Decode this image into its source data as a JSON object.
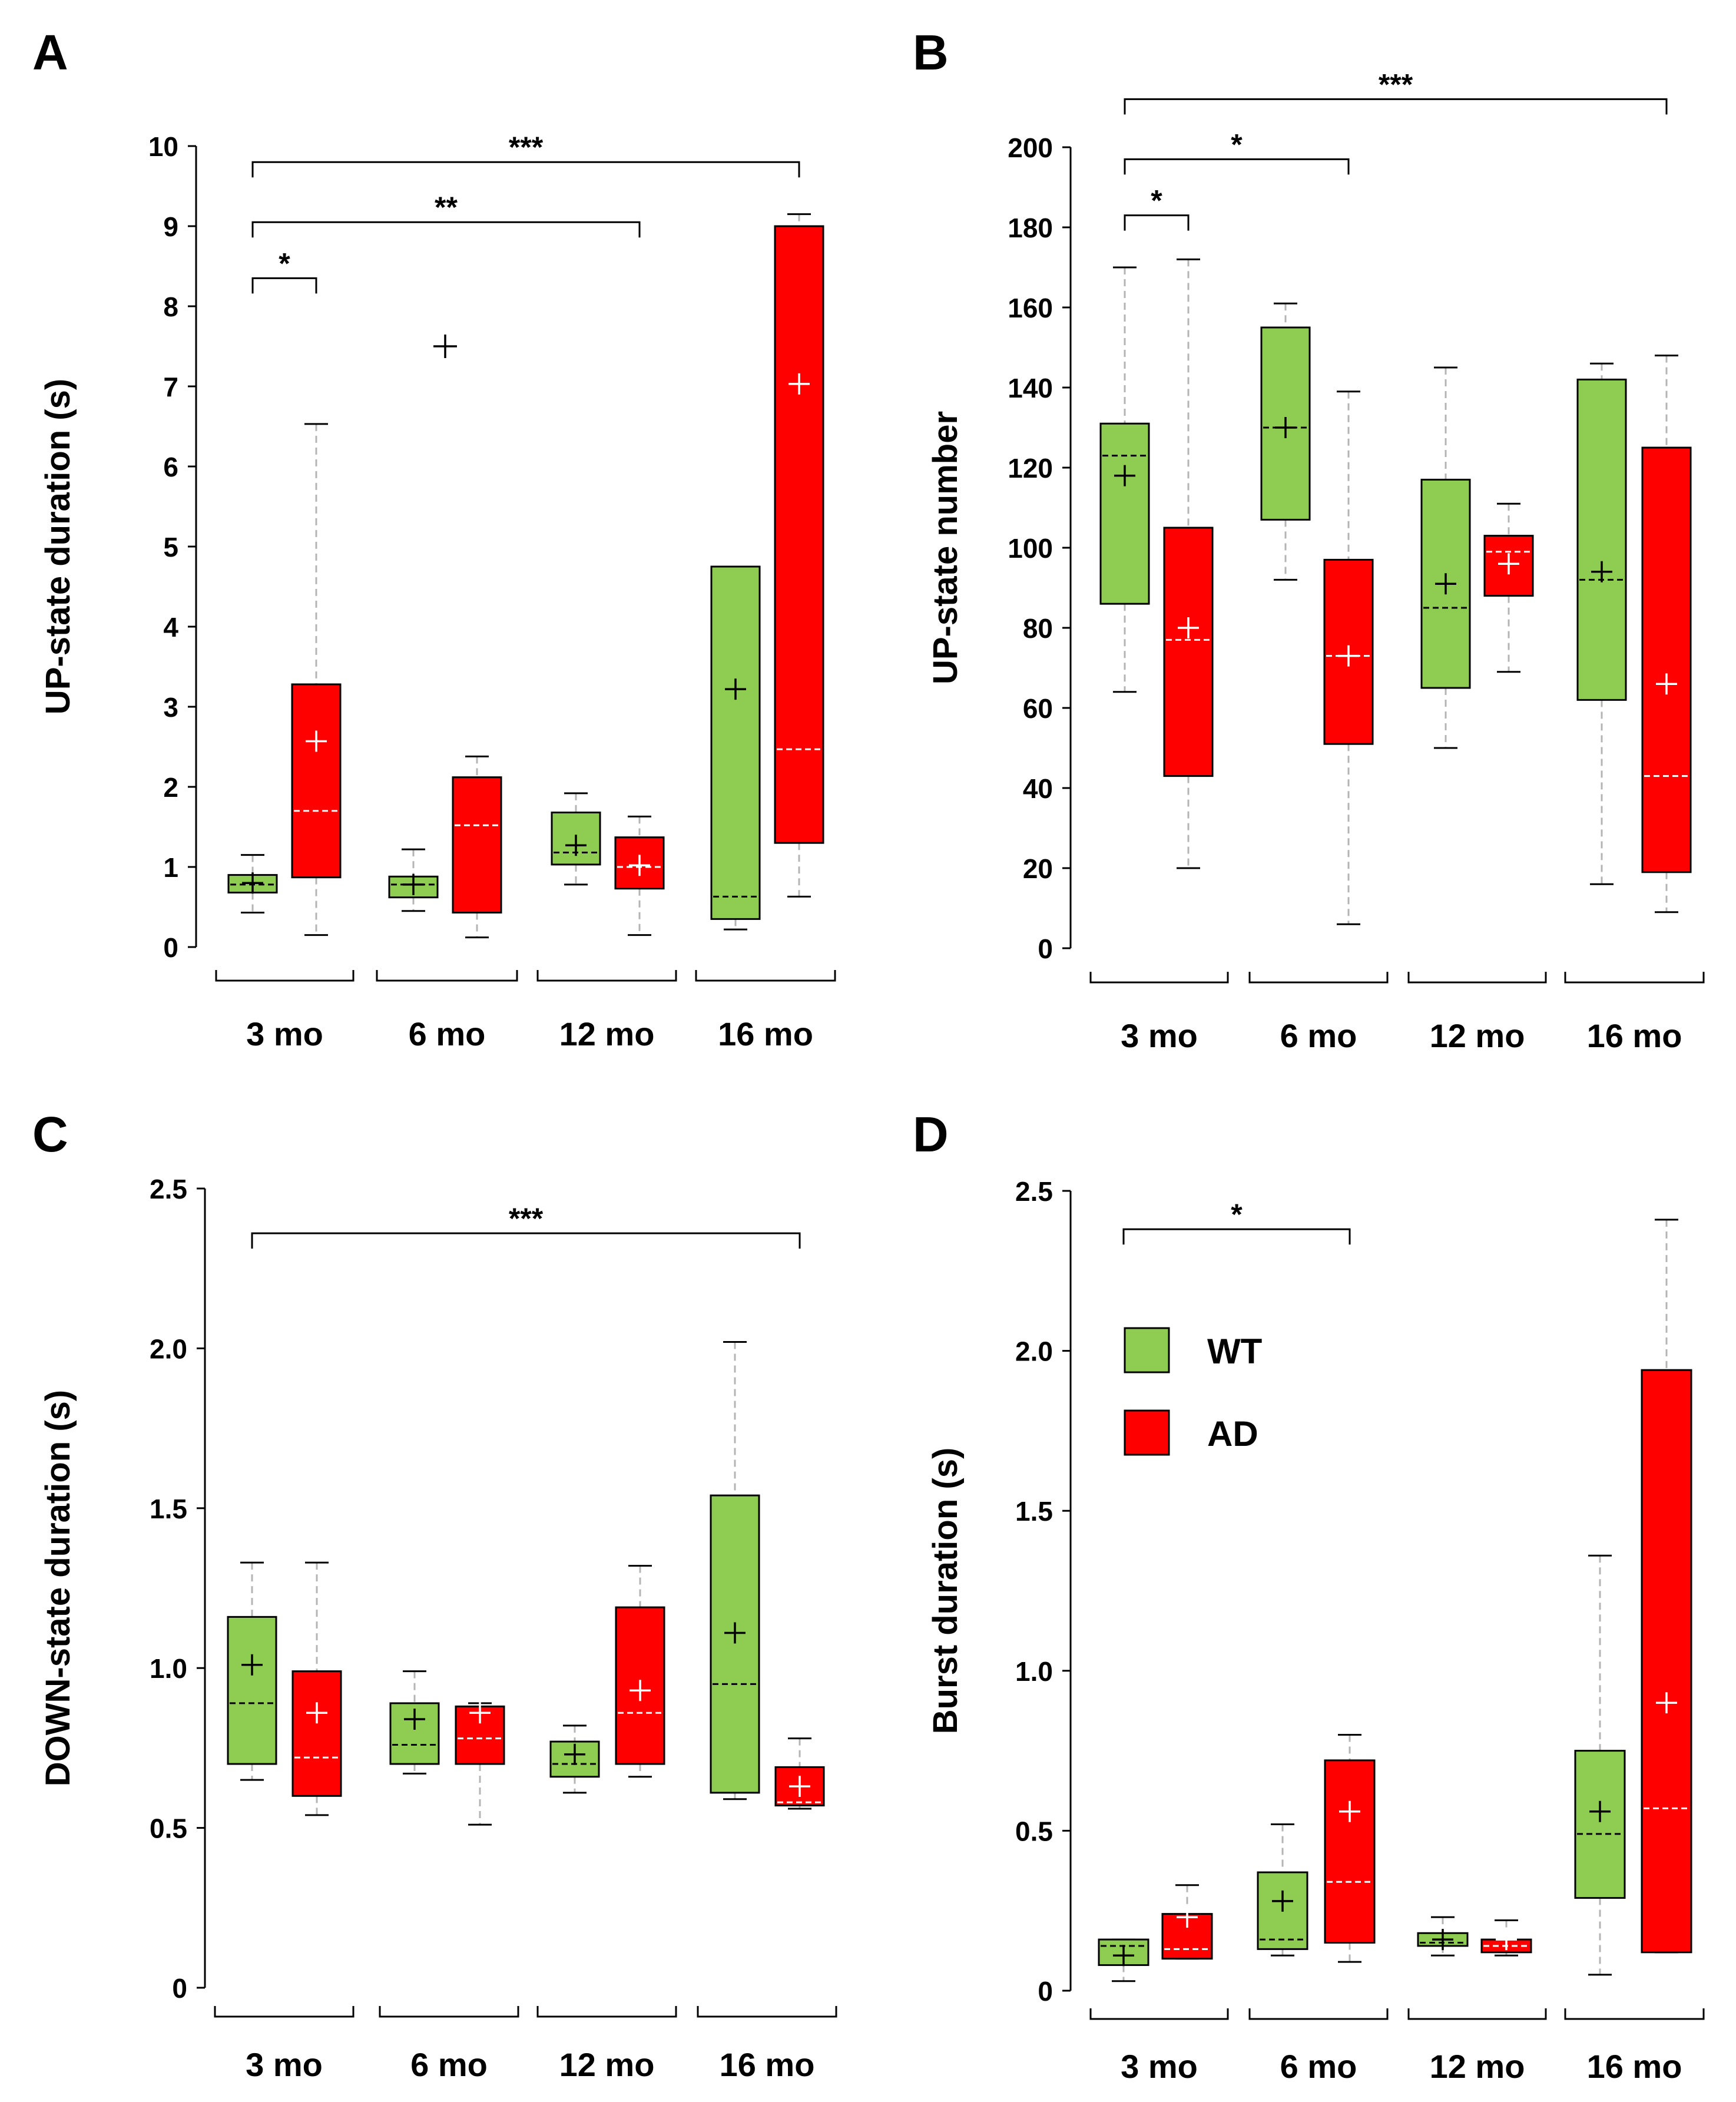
{
  "colors": {
    "WT": "#8fcc52",
    "AD": "#ff0000",
    "whisker": "#b4b4b4"
  },
  "legend": {
    "items": [
      {
        "label": "WT",
        "group": "WT"
      },
      {
        "label": "AD",
        "group": "AD"
      }
    ]
  },
  "chart_data": [
    {
      "panel": "A",
      "type": "box",
      "ylabel": "UP-state duration (s)",
      "ylim": [
        0,
        10
      ],
      "ticks": [
        "0",
        "1",
        "2",
        "3",
        "4",
        "5",
        "6",
        "7",
        "8",
        "9",
        "10"
      ],
      "categories": [
        "3 mo",
        "6 mo",
        "12 mo",
        "16 mo"
      ],
      "boxes": [
        {
          "category": "3 mo",
          "group": "WT",
          "low": 0.43,
          "q1": 0.68,
          "median": 0.78,
          "q3": 0.9,
          "high": 1.15,
          "mean": 0.8
        },
        {
          "category": "3 mo",
          "group": "AD",
          "low": 0.15,
          "q1": 0.87,
          "median": 1.7,
          "q3": 3.28,
          "high": 6.53,
          "mean": 2.57
        },
        {
          "category": "6 mo",
          "group": "WT",
          "low": 0.45,
          "q1": 0.62,
          "median": 0.78,
          "q3": 0.88,
          "high": 1.22,
          "mean": 0.78
        },
        {
          "category": "6 mo",
          "group": "AD",
          "low": 0.12,
          "q1": 0.43,
          "median": 1.52,
          "q3": 2.12,
          "high": 2.38,
          "mean": null
        },
        {
          "category": "12 mo",
          "group": "WT",
          "low": 0.78,
          "q1": 1.03,
          "median": 1.18,
          "q3": 1.68,
          "high": 1.92,
          "mean": 1.27
        },
        {
          "category": "12 mo",
          "group": "AD",
          "low": 0.15,
          "q1": 0.73,
          "median": 1.0,
          "q3": 1.37,
          "high": 1.63,
          "mean": 1.02
        },
        {
          "category": "16 mo",
          "group": "WT",
          "low": 0.22,
          "q1": 0.35,
          "median": 0.63,
          "q3": 4.75,
          "high": 4.75,
          "mean": 3.22
        },
        {
          "category": "16 mo",
          "group": "AD",
          "low": 0.63,
          "q1": 1.3,
          "median": 2.47,
          "q3": 9.0,
          "high": 9.15,
          "mean": 7.03
        }
      ],
      "outliers": [
        {
          "category": "6 mo",
          "value": 7.5
        }
      ],
      "significance": [
        {
          "from": "3 mo WT",
          "to": "3 mo AD",
          "y": 8.35,
          "label": "*"
        },
        {
          "from": "3 mo WT",
          "to": "12 mo AD",
          "y": 9.05,
          "label": "**"
        },
        {
          "from": "3 mo WT",
          "to": "16 mo AD",
          "y": 9.8,
          "label": "***"
        }
      ]
    },
    {
      "panel": "B",
      "type": "box",
      "ylabel": "UP-state number",
      "ylim": [
        0,
        200
      ],
      "ticks": [
        "0",
        "20",
        "40",
        "60",
        "80",
        "100",
        "120",
        "140",
        "160",
        "180",
        "200"
      ],
      "categories": [
        "3 mo",
        "6 mo",
        "12 mo",
        "16 mo"
      ],
      "boxes": [
        {
          "category": "3 mo",
          "group": "WT",
          "low": 64,
          "q1": 86,
          "median": 123,
          "q3": 131,
          "high": 170,
          "mean": 118
        },
        {
          "category": "3 mo",
          "group": "AD",
          "low": 20,
          "q1": 43,
          "median": 77,
          "q3": 105,
          "high": 172,
          "mean": 80
        },
        {
          "category": "6 mo",
          "group": "WT",
          "low": 92,
          "q1": 107,
          "median": 130,
          "q3": 155,
          "high": 161,
          "mean": 130
        },
        {
          "category": "6 mo",
          "group": "AD",
          "low": 6,
          "q1": 51,
          "median": 73,
          "q3": 97,
          "high": 139,
          "mean": 73
        },
        {
          "category": "12 mo",
          "group": "WT",
          "low": 50,
          "q1": 65,
          "median": 85,
          "q3": 117,
          "high": 145,
          "mean": 91
        },
        {
          "category": "12 mo",
          "group": "AD",
          "low": 69,
          "q1": 88,
          "median": 99,
          "q3": 103,
          "high": 111,
          "mean": 96
        },
        {
          "category": "16 mo",
          "group": "WT",
          "low": 16,
          "q1": 62,
          "median": 92,
          "q3": 142,
          "high": 146,
          "mean": 94
        },
        {
          "category": "16 mo",
          "group": "AD",
          "low": 9,
          "q1": 19,
          "median": 43,
          "q3": 125,
          "high": 148,
          "mean": 66
        }
      ],
      "outliers": [],
      "significance": [
        {
          "from": "3 mo WT",
          "to": "3 mo AD",
          "y": 183,
          "label": "*"
        },
        {
          "from": "3 mo WT",
          "to": "6 mo AD",
          "y": 197,
          "label": "*"
        },
        {
          "from": "3 mo WT",
          "to": "16 mo AD",
          "y": 212,
          "label": "***"
        }
      ]
    },
    {
      "panel": "C",
      "type": "box",
      "ylabel": "DOWN-state duration (s)",
      "ylim": [
        0,
        2.5
      ],
      "ticks": [
        "0",
        "0.5",
        "1.0",
        "1.5",
        "2.0",
        "2.5"
      ],
      "categories": [
        "3 mo",
        "6 mo",
        "12 mo",
        "16 mo"
      ],
      "boxes": [
        {
          "category": "3 mo",
          "group": "WT",
          "low": 0.65,
          "q1": 0.7,
          "median": 0.89,
          "q3": 1.16,
          "high": 1.33,
          "mean": 1.01
        },
        {
          "category": "3 mo",
          "group": "AD",
          "low": 0.54,
          "q1": 0.6,
          "median": 0.72,
          "q3": 0.99,
          "high": 1.33,
          "mean": 0.86
        },
        {
          "category": "6 mo",
          "group": "WT",
          "low": 0.67,
          "q1": 0.7,
          "median": 0.76,
          "q3": 0.89,
          "high": 0.99,
          "mean": 0.84
        },
        {
          "category": "6 mo",
          "group": "AD",
          "low": 0.51,
          "q1": 0.7,
          "median": 0.78,
          "q3": 0.88,
          "high": 0.89,
          "mean": 0.86
        },
        {
          "category": "12 mo",
          "group": "WT",
          "low": 0.61,
          "q1": 0.66,
          "median": 0.7,
          "q3": 0.77,
          "high": 0.82,
          "mean": 0.73
        },
        {
          "category": "12 mo",
          "group": "AD",
          "low": 0.66,
          "q1": 0.7,
          "median": 0.86,
          "q3": 1.19,
          "high": 1.32,
          "mean": 0.93
        },
        {
          "category": "16 mo",
          "group": "WT",
          "low": 0.59,
          "q1": 0.61,
          "median": 0.95,
          "q3": 1.54,
          "high": 2.02,
          "mean": 1.11
        },
        {
          "category": "16 mo",
          "group": "AD",
          "low": 0.56,
          "q1": 0.57,
          "median": 0.58,
          "q3": 0.69,
          "high": 0.78,
          "mean": 0.63
        }
      ],
      "outliers": [],
      "significance": [
        {
          "from": "3 mo WT",
          "to": "16 mo AD",
          "y": 2.36,
          "label": "***"
        }
      ]
    },
    {
      "panel": "D",
      "type": "box",
      "ylabel": "Burst duration (s)",
      "ylim": [
        0,
        2.5
      ],
      "ticks": [
        "0",
        "0.5",
        "1.0",
        "1.5",
        "2.0",
        "2.5"
      ],
      "categories": [
        "3 mo",
        "6 mo",
        "12 mo",
        "16 mo"
      ],
      "boxes": [
        {
          "category": "3 mo",
          "group": "WT",
          "low": 0.03,
          "q1": 0.08,
          "median": 0.14,
          "q3": 0.16,
          "high": 0.16,
          "mean": 0.11
        },
        {
          "category": "3 mo",
          "group": "AD",
          "low": 0.1,
          "q1": 0.1,
          "median": 0.13,
          "q3": 0.24,
          "high": 0.33,
          "mean": 0.23
        },
        {
          "category": "6 mo",
          "group": "WT",
          "low": 0.11,
          "q1": 0.13,
          "median": 0.16,
          "q3": 0.37,
          "high": 0.52,
          "mean": 0.28
        },
        {
          "category": "6 mo",
          "group": "AD",
          "low": 0.09,
          "q1": 0.15,
          "median": 0.34,
          "q3": 0.72,
          "high": 0.8,
          "mean": 0.56
        },
        {
          "category": "12 mo",
          "group": "WT",
          "low": 0.11,
          "q1": 0.14,
          "median": 0.15,
          "q3": 0.18,
          "high": 0.23,
          "mean": 0.16
        },
        {
          "category": "12 mo",
          "group": "AD",
          "low": 0.11,
          "q1": 0.12,
          "median": 0.14,
          "q3": 0.16,
          "high": 0.22,
          "mean": 0.16
        },
        {
          "category": "16 mo",
          "group": "WT",
          "low": 0.05,
          "q1": 0.29,
          "median": 0.49,
          "q3": 0.75,
          "high": 1.36,
          "mean": 0.56
        },
        {
          "category": "16 mo",
          "group": "AD",
          "low": 0.12,
          "q1": 0.12,
          "median": 0.57,
          "q3": 1.94,
          "high": 2.41,
          "mean": 0.9
        }
      ],
      "outliers": [],
      "significance": [
        {
          "from": "3 mo WT",
          "to": "6 mo AD",
          "y": 2.38,
          "label": "*"
        }
      ]
    }
  ]
}
